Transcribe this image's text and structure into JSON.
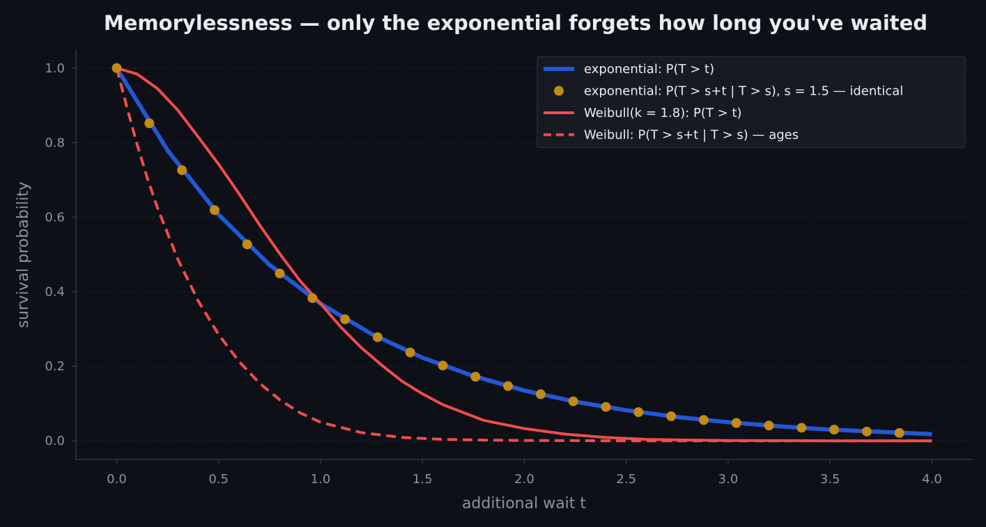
{
  "chart_data": {
    "type": "line",
    "title": "Memorylessness — only the exponential forgets how long you've waited",
    "xlabel": "additional wait t",
    "ylabel": "survival probability",
    "xlim": [
      -0.2,
      4.2
    ],
    "ylim": [
      -0.05,
      1.05
    ],
    "xticks": [
      0.0,
      0.5,
      1.0,
      1.5,
      2.0,
      2.5,
      3.0,
      3.5,
      4.0
    ],
    "xtick_labels": [
      "0.0",
      "0.5",
      "1.0",
      "1.5",
      "2.0",
      "2.5",
      "3.0",
      "3.5",
      "4.0"
    ],
    "yticks": [
      0.0,
      0.2,
      0.4,
      0.6,
      0.8,
      1.0
    ],
    "ytick_labels": [
      "0.0",
      "0.2",
      "0.4",
      "0.6",
      "0.8",
      "1.0"
    ],
    "grid": "horizontal dashed",
    "legend_position": "top-right",
    "colors": {
      "background": "#0d1017",
      "text": "#e6edf3",
      "muted": "#8b949e",
      "axis": "#30363d",
      "grid": "#1c2230",
      "legend_bg": "#161b22",
      "exponential": "#2457d6",
      "exponential_markers": "#c38b14",
      "weibull": "#f24c4c"
    },
    "series": [
      {
        "name": "exponential: P(T > t)",
        "style": "solid-thick",
        "color": "#2457d6",
        "x": [
          0.0,
          0.25,
          0.5,
          0.75,
          1.0,
          1.25,
          1.5,
          1.75,
          2.0,
          2.25,
          2.5,
          2.75,
          3.0,
          3.25,
          3.5,
          3.75,
          4.0
        ],
        "y": [
          1.0,
          0.779,
          0.607,
          0.472,
          0.368,
          0.287,
          0.223,
          0.174,
          0.135,
          0.105,
          0.082,
          0.064,
          0.05,
          0.039,
          0.03,
          0.024,
          0.018
        ]
      },
      {
        "name": "exponential: P(T > s+t | T > s), s = 1.5 — identical",
        "style": "markers",
        "color": "#c38b14",
        "x": [
          0.0,
          0.16,
          0.32,
          0.48,
          0.64,
          0.8,
          0.96,
          1.12,
          1.28,
          1.44,
          1.6,
          1.76,
          1.92,
          2.08,
          2.24,
          2.4,
          2.56,
          2.72,
          2.88,
          3.04,
          3.2,
          3.36,
          3.52,
          3.68,
          3.84
        ],
        "y": [
          1.0,
          0.852,
          0.726,
          0.619,
          0.527,
          0.449,
          0.383,
          0.326,
          0.278,
          0.237,
          0.202,
          0.172,
          0.147,
          0.125,
          0.106,
          0.091,
          0.077,
          0.066,
          0.056,
          0.048,
          0.041,
          0.035,
          0.03,
          0.025,
          0.021
        ]
      },
      {
        "name": "Weibull(k = 1.8): P(T > t)",
        "style": "solid",
        "color": "#f24c4c",
        "x": [
          0.0,
          0.1,
          0.2,
          0.3,
          0.4,
          0.5,
          0.6,
          0.7,
          0.8,
          0.9,
          1.0,
          1.1,
          1.2,
          1.3,
          1.4,
          1.5,
          1.6,
          1.8,
          2.0,
          2.2,
          2.4,
          2.6,
          2.8,
          3.0,
          3.5,
          4.0
        ],
        "y": [
          1.0,
          0.984,
          0.945,
          0.887,
          0.815,
          0.742,
          0.663,
          0.58,
          0.502,
          0.429,
          0.368,
          0.305,
          0.25,
          0.203,
          0.16,
          0.126,
          0.097,
          0.055,
          0.033,
          0.018,
          0.009,
          0.004,
          0.002,
          0.001,
          0.0,
          0.0
        ]
      },
      {
        "name": "Weibull: P(T > s+t | T > s) — ages",
        "style": "dashed",
        "color": "#f24c4c",
        "x": [
          0.0,
          0.05,
          0.1,
          0.15,
          0.2,
          0.3,
          0.4,
          0.5,
          0.6,
          0.7,
          0.8,
          0.9,
          1.0,
          1.2,
          1.4,
          1.6,
          1.8,
          2.0,
          2.5,
          3.0,
          3.5,
          4.0
        ],
        "y": [
          1.0,
          0.895,
          0.795,
          0.705,
          0.625,
          0.487,
          0.375,
          0.285,
          0.213,
          0.155,
          0.11,
          0.075,
          0.05,
          0.022,
          0.009,
          0.004,
          0.002,
          0.001,
          0.0,
          0.0,
          0.0,
          0.0
        ]
      }
    ]
  }
}
